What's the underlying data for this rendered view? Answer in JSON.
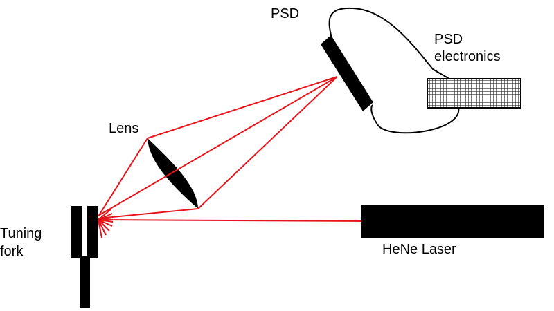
{
  "diagram": {
    "labels": {
      "psd": "PSD",
      "psd_electronics_line1": "PSD",
      "psd_electronics_line2": "electronics",
      "lens": "Lens",
      "tuning_fork_line1": "Tuning",
      "tuning_fork_line2": "fork",
      "laser": "HeNe Laser"
    },
    "colors": {
      "beam": "#e8141b",
      "component": "#000000",
      "background": "#ffffff"
    }
  }
}
